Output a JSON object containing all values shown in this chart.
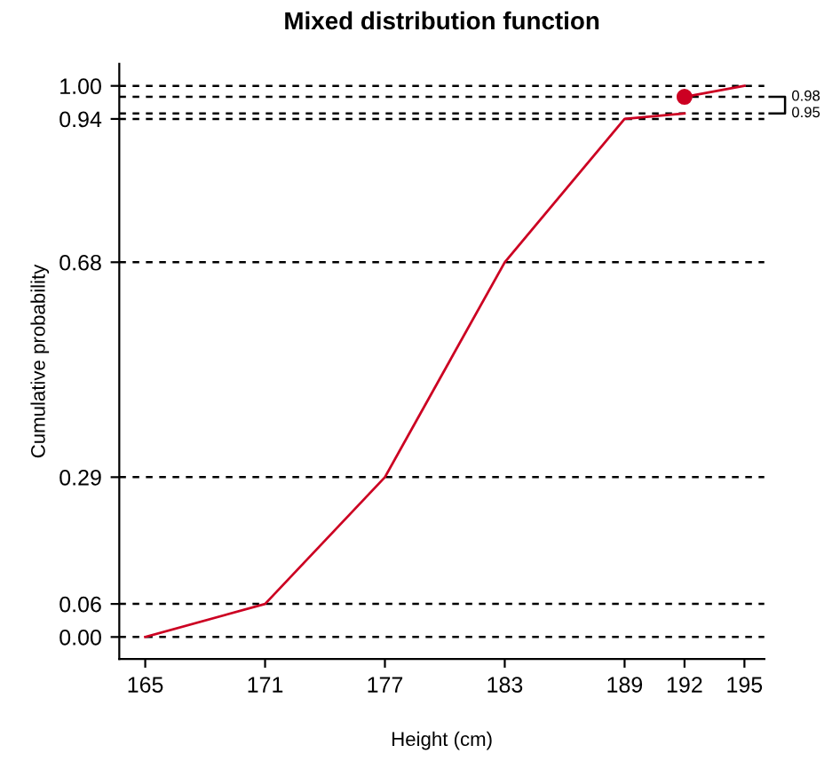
{
  "chart_data": {
    "type": "line",
    "title": "Mixed distribution function",
    "xlabel": "Height (cm)",
    "ylabel": "Cumulative probability",
    "series": [
      {
        "color": "#cc0022",
        "x": [
          165,
          171,
          177,
          183,
          189,
          192
        ],
        "values": [
          0,
          0.06,
          0.29,
          0.68,
          0.94,
          0.95
        ]
      },
      {
        "color": "#cc0022",
        "x": [
          192,
          195
        ],
        "values": [
          0.98,
          1.0
        ]
      },
      {
        "type": "scatter",
        "color": "#cc0022",
        "marker": "circle",
        "x": [
          192
        ],
        "values": [
          0.98
        ]
      }
    ],
    "xlim": [
      163.7,
      196.0
    ],
    "ylim": [
      -0.04,
      1.04
    ],
    "xticks": [
      165,
      171,
      177,
      183,
      189,
      192,
      195
    ],
    "yticks": [
      {
        "value": 0,
        "label": "0.00"
      },
      0.06,
      0.29,
      0.68,
      0.94,
      {
        "value": 1,
        "label": "1.00"
      }
    ],
    "ref_lines": [
      {
        "axis": "y",
        "value": 0,
        "color": "#000000",
        "line_style": "dashed"
      },
      {
        "axis": "y",
        "value": 0.06,
        "color": "#000000",
        "line_style": "dashed"
      },
      {
        "axis": "y",
        "value": 0.29,
        "color": "#000000",
        "line_style": "dashed"
      },
      {
        "axis": "y",
        "value": 0.68,
        "color": "#000000",
        "line_style": "dashed"
      },
      {
        "axis": "y",
        "value": 0.94,
        "color": "#000000",
        "line_style": "dashed"
      },
      {
        "axis": "y",
        "value": 0.95,
        "color": "#000000",
        "line_style": "dashed",
        "label": "0.95"
      },
      {
        "axis": "y",
        "value": 0.98,
        "color": "#000000",
        "line_style": "dashed",
        "label": "0.98"
      },
      {
        "axis": "y",
        "value": 1.0,
        "color": "#000000",
        "line_style": "dashed"
      }
    ],
    "grid": false,
    "legend": false
  }
}
